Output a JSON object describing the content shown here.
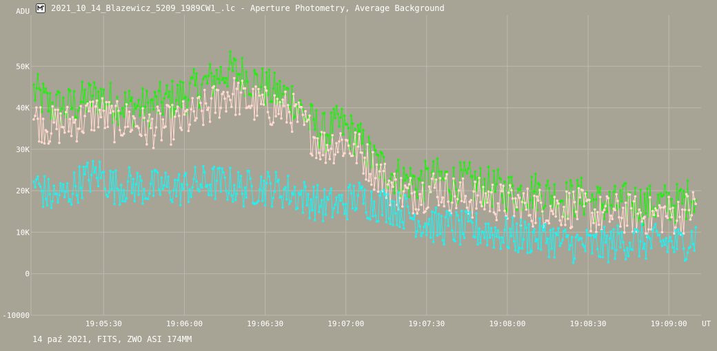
{
  "window": {
    "title": "2021_10_14_Blazewicz_5209_1989CW1_.lc - Aperture Photometry, Average Background",
    "icon": "telescope-app-icon"
  },
  "footer": {
    "text": "14 paź 2021, FITS, ZWO ASI 174MM"
  },
  "colors": {
    "background": "#a8a495",
    "grid": "#bcb9ad",
    "text": "#ffffff",
    "series_green": "#22ee11",
    "series_pink": "#ffd8d0",
    "series_cyan": "#22f0f0"
  },
  "chart_data": {
    "type": "line",
    "title": "",
    "y_unit_label": "ADU",
    "x_unit_label": "UT",
    "ylim": [
      -10000,
      60000
    ],
    "xlim": [
      "19:05:03",
      "19:09:12"
    ],
    "y_ticks": [
      {
        "value": 50000,
        "label": "50K"
      },
      {
        "value": 40000,
        "label": "40K"
      },
      {
        "value": 30000,
        "label": "30K"
      },
      {
        "value": 20000,
        "label": "20K"
      },
      {
        "value": 10000,
        "label": "10K"
      },
      {
        "value": 0,
        "label": "0"
      },
      {
        "value": -10000,
        "label": "-10000"
      }
    ],
    "x_ticks": [
      "19:05:30",
      "19:06:00",
      "19:06:30",
      "19:07:00",
      "19:07:30",
      "19:08:00",
      "19:08:30",
      "19:09:00"
    ],
    "grid": true,
    "legend": "none",
    "series": [
      {
        "color": "series_green",
        "points": [
          [
            "19:05:04",
            44000
          ],
          [
            "19:05:10",
            40500
          ],
          [
            "19:05:16",
            40000
          ],
          [
            "19:05:22",
            41500
          ],
          [
            "19:05:28",
            43000
          ],
          [
            "19:05:34",
            41000
          ],
          [
            "19:05:40",
            40500
          ],
          [
            "19:05:46",
            40000
          ],
          [
            "19:05:52",
            41500
          ],
          [
            "19:05:58",
            42500
          ],
          [
            "19:06:04",
            44500
          ],
          [
            "19:06:10",
            46500
          ],
          [
            "19:06:16",
            49000
          ],
          [
            "19:06:22",
            48000
          ],
          [
            "19:06:28",
            45500
          ],
          [
            "19:06:34",
            43500
          ],
          [
            "19:06:40",
            42500
          ],
          [
            "19:06:46",
            37000
          ],
          [
            "19:06:52",
            34000
          ],
          [
            "19:06:58",
            36000
          ],
          [
            "19:07:04",
            33000
          ],
          [
            "19:07:10",
            27500
          ],
          [
            "19:07:16",
            24500
          ],
          [
            "19:07:22",
            22500
          ],
          [
            "19:07:28",
            22000
          ],
          [
            "19:07:34",
            23000
          ],
          [
            "19:07:40",
            22000
          ],
          [
            "19:07:46",
            22000
          ],
          [
            "19:07:52",
            21000
          ],
          [
            "19:07:58",
            20000
          ],
          [
            "19:08:04",
            19500
          ],
          [
            "19:08:10",
            20000
          ],
          [
            "19:08:16",
            19000
          ],
          [
            "19:08:22",
            18000
          ],
          [
            "19:08:28",
            18500
          ],
          [
            "19:08:34",
            17000
          ],
          [
            "19:08:40",
            16500
          ],
          [
            "19:08:46",
            17500
          ],
          [
            "19:08:52",
            16500
          ],
          [
            "19:08:58",
            17000
          ],
          [
            "19:09:04",
            17000
          ],
          [
            "19:09:10",
            19000
          ]
        ]
      },
      {
        "color": "series_pink",
        "points": [
          [
            "19:05:04",
            37500
          ],
          [
            "19:05:10",
            35500
          ],
          [
            "19:05:16",
            36000
          ],
          [
            "19:05:22",
            37000
          ],
          [
            "19:05:28",
            39000
          ],
          [
            "19:05:34",
            36500
          ],
          [
            "19:05:40",
            37000
          ],
          [
            "19:05:46",
            35000
          ],
          [
            "19:05:52",
            35500
          ],
          [
            "19:05:58",
            36500
          ],
          [
            "19:06:04",
            38000
          ],
          [
            "19:06:10",
            40500
          ],
          [
            "19:06:16",
            43500
          ],
          [
            "19:06:22",
            42000
          ],
          [
            "19:06:28",
            40500
          ],
          [
            "19:06:34",
            40000
          ],
          [
            "19:06:40",
            39000
          ],
          [
            "19:06:46",
            34500
          ],
          [
            "19:06:52",
            30500
          ],
          [
            "19:06:58",
            32000
          ],
          [
            "19:07:04",
            30000
          ],
          [
            "19:07:10",
            25500
          ],
          [
            "19:07:16",
            21500
          ],
          [
            "19:07:22",
            19000
          ],
          [
            "19:07:28",
            19500
          ],
          [
            "19:07:34",
            21000
          ],
          [
            "19:07:40",
            19000
          ],
          [
            "19:07:46",
            18000
          ],
          [
            "19:07:52",
            18500
          ],
          [
            "19:07:58",
            17000
          ],
          [
            "19:08:04",
            16500
          ],
          [
            "19:08:10",
            16000
          ],
          [
            "19:08:16",
            16000
          ],
          [
            "19:08:22",
            16000
          ],
          [
            "19:08:28",
            15500
          ],
          [
            "19:08:34",
            14000
          ],
          [
            "19:08:40",
            14500
          ],
          [
            "19:08:46",
            14500
          ],
          [
            "19:08:52",
            13500
          ],
          [
            "19:08:58",
            14500
          ],
          [
            "19:09:04",
            14000
          ],
          [
            "19:09:10",
            16500
          ]
        ]
      },
      {
        "color": "series_cyan",
        "points": [
          [
            "19:05:04",
            22000
          ],
          [
            "19:05:10",
            18500
          ],
          [
            "19:05:16",
            19000
          ],
          [
            "19:05:22",
            22500
          ],
          [
            "19:05:28",
            24000
          ],
          [
            "19:05:34",
            21000
          ],
          [
            "19:05:40",
            21500
          ],
          [
            "19:05:46",
            20500
          ],
          [
            "19:05:52",
            21000
          ],
          [
            "19:05:58",
            20500
          ],
          [
            "19:06:04",
            21500
          ],
          [
            "19:06:10",
            22000
          ],
          [
            "19:06:16",
            21500
          ],
          [
            "19:06:22",
            20500
          ],
          [
            "19:06:28",
            21000
          ],
          [
            "19:06:34",
            20500
          ],
          [
            "19:06:40",
            19500
          ],
          [
            "19:06:46",
            18000
          ],
          [
            "19:06:52",
            16500
          ],
          [
            "19:06:58",
            16500
          ],
          [
            "19:07:04",
            18500
          ],
          [
            "19:07:10",
            17000
          ],
          [
            "19:07:16",
            16500
          ],
          [
            "19:07:22",
            15000
          ],
          [
            "19:07:28",
            12500
          ],
          [
            "19:07:34",
            11500
          ],
          [
            "19:07:40",
            11000
          ],
          [
            "19:07:46",
            10500
          ],
          [
            "19:07:52",
            10500
          ],
          [
            "19:07:58",
            9500
          ],
          [
            "19:08:04",
            9000
          ],
          [
            "19:08:10",
            9000
          ],
          [
            "19:08:16",
            8500
          ],
          [
            "19:08:22",
            7000
          ],
          [
            "19:08:28",
            7000
          ],
          [
            "19:08:34",
            6500
          ],
          [
            "19:08:40",
            7500
          ],
          [
            "19:08:46",
            8000
          ],
          [
            "19:08:52",
            7500
          ],
          [
            "19:08:58",
            7500
          ],
          [
            "19:09:04",
            7000
          ],
          [
            "19:09:10",
            9000
          ]
        ]
      }
    ]
  }
}
